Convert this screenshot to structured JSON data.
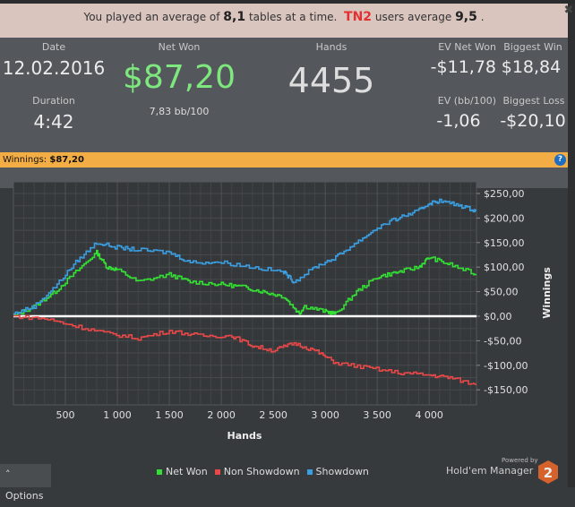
{
  "banner": {
    "prefix": "You played an average of",
    "tables": "8,1",
    "middle": "tables at a time.",
    "brand": "TN2",
    "users": "users average",
    "avg": "9,5",
    "end": "."
  },
  "stats": {
    "date_label": "Date",
    "date": "12.02.2016",
    "duration_label": "Duration",
    "duration": "4:42",
    "net_won_label": "Net Won",
    "net_won": "$87,20",
    "bb100": "7,83 bb/100",
    "hands_label": "Hands",
    "hands": "4455",
    "ev_net_won_label": "EV Net Won",
    "ev_net_won": "-$11,78",
    "biggest_win_label": "Biggest Win",
    "biggest_win": "$18,84",
    "ev_bb_label": "EV (bb/100)",
    "ev_bb": "-1,06",
    "biggest_loss_label": "Biggest Loss",
    "biggest_loss": "-$20,10"
  },
  "winnings_bar": {
    "label": "Winnings:",
    "value": "$87,20",
    "help": "?"
  },
  "chart_data": {
    "type": "line",
    "xlabel": "Hands",
    "ylabel": "Winnings",
    "xlim": [
      0,
      4455
    ],
    "ylim": [
      -165,
      285
    ],
    "xticks": [
      500,
      1000,
      1500,
      2000,
      2500,
      3000,
      3500,
      4000
    ],
    "xtick_labels": [
      "500",
      "1 000",
      "1 500",
      "2 000",
      "2 500",
      "3 000",
      "3 500",
      "4 000"
    ],
    "yticks": [
      250,
      200,
      150,
      100,
      50,
      0,
      -50,
      -100,
      -150
    ],
    "ytick_labels": [
      "$250,00",
      "$200,00",
      "$150,00",
      "$100,00",
      "$50,00",
      "$0,00",
      "-$50,00",
      "-$100,00",
      "-$150,00"
    ],
    "series": [
      {
        "name": "Net Won",
        "color": "#33e033",
        "x": [
          0,
          200,
          400,
          600,
          800,
          900,
          1000,
          1200,
          1500,
          1700,
          2000,
          2200,
          2400,
          2600,
          2750,
          2800,
          3000,
          3100,
          3300,
          3500,
          3700,
          3900,
          4000,
          4200,
          4455
        ],
        "y": [
          0,
          20,
          50,
          90,
          130,
          100,
          95,
          70,
          85,
          70,
          65,
          60,
          50,
          40,
          5,
          20,
          10,
          5,
          50,
          80,
          90,
          100,
          120,
          105,
          85
        ]
      },
      {
        "name": "Non Showdown",
        "color": "#e84848",
        "x": [
          0,
          300,
          600,
          900,
          1200,
          1500,
          1800,
          2100,
          2300,
          2500,
          2700,
          2900,
          3100,
          3400,
          3700,
          4000,
          4200,
          4455
        ],
        "y": [
          0,
          -5,
          -20,
          -35,
          -45,
          -30,
          -40,
          -40,
          -60,
          -70,
          -55,
          -70,
          -95,
          -105,
          -115,
          -120,
          -125,
          -140
        ]
      },
      {
        "name": "Showdown",
        "color": "#3a9ee0",
        "x": [
          0,
          200,
          400,
          600,
          800,
          1000,
          1200,
          1500,
          1700,
          2000,
          2300,
          2600,
          2700,
          2900,
          3100,
          3300,
          3500,
          3700,
          3900,
          4000,
          4100,
          4300,
          4455
        ],
        "y": [
          5,
          20,
          60,
          110,
          150,
          140,
          135,
          130,
          110,
          110,
          100,
          90,
          70,
          100,
          120,
          150,
          180,
          200,
          215,
          230,
          235,
          225,
          215
        ]
      }
    ],
    "grid": true,
    "legend": "bottom"
  },
  "footer": {
    "options": "Options",
    "powered": "Powered by",
    "brand": "Hold'em Manager",
    "logo_num": "2"
  }
}
